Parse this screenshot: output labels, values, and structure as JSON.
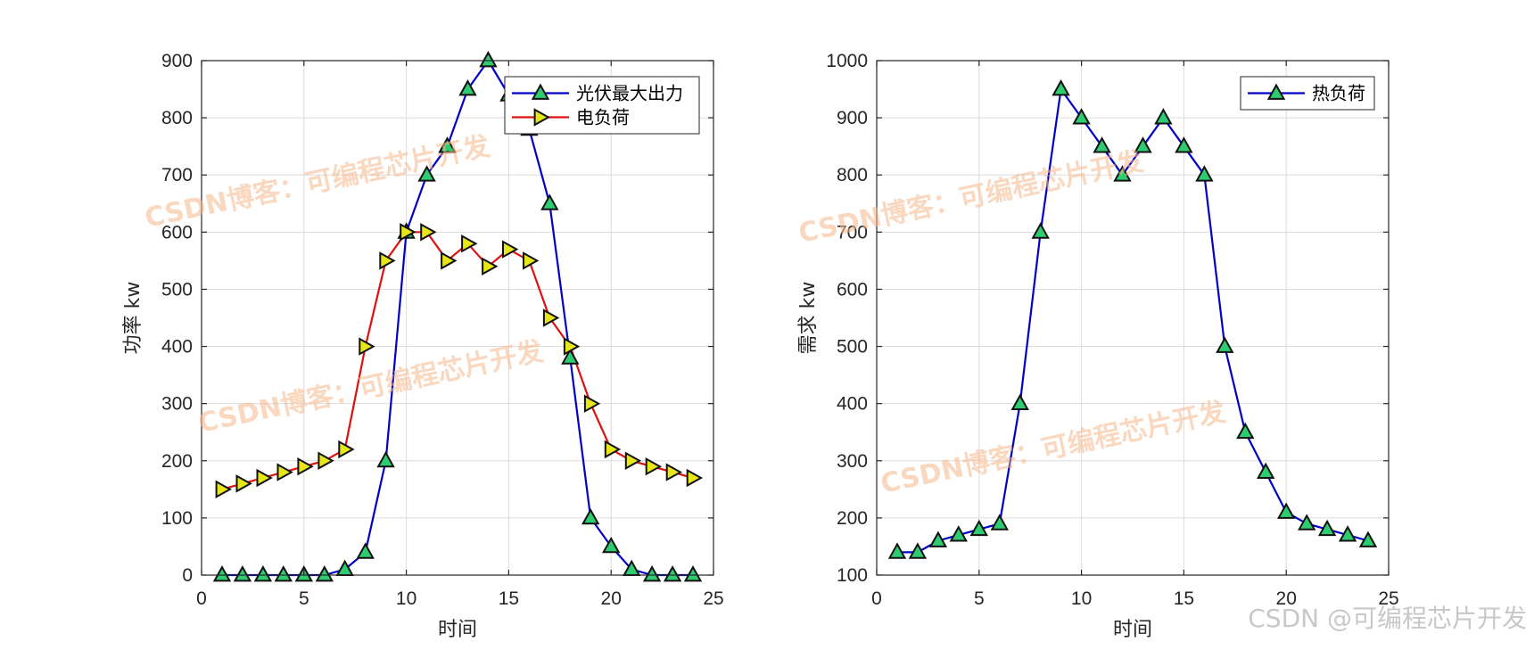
{
  "chart_data": [
    {
      "type": "line",
      "title": "",
      "xlabel": "时间",
      "ylabel": "功率 kw",
      "xlim": [
        0,
        25
      ],
      "ylim": [
        0,
        900
      ],
      "xticks": [
        0,
        5,
        10,
        15,
        20,
        25
      ],
      "yticks": [
        0,
        100,
        200,
        300,
        400,
        500,
        600,
        700,
        800,
        900
      ],
      "grid": true,
      "legend_position": "top-right",
      "x": [
        1,
        2,
        3,
        4,
        5,
        6,
        7,
        8,
        9,
        10,
        11,
        12,
        13,
        14,
        15,
        16,
        17,
        18,
        19,
        20,
        21,
        22,
        23,
        24
      ],
      "series": [
        {
          "name": "光伏最大出力",
          "color": "#0000c8",
          "marker": "triangle-up",
          "marker_fill": "#2ecc71",
          "values": [
            0,
            0,
            0,
            0,
            0,
            0,
            10,
            40,
            200,
            600,
            700,
            750,
            850,
            900,
            840,
            780,
            650,
            380,
            100,
            50,
            10,
            0,
            0,
            0
          ]
        },
        {
          "name": "电负荷",
          "color": "#e01010",
          "marker": "triangle-right",
          "marker_fill": "#e6e619",
          "values": [
            150,
            160,
            170,
            180,
            190,
            200,
            220,
            400,
            550,
            600,
            600,
            550,
            580,
            540,
            570,
            550,
            450,
            400,
            300,
            220,
            200,
            190,
            180,
            170
          ]
        }
      ]
    },
    {
      "type": "line",
      "title": "",
      "xlabel": "时间",
      "ylabel": "需求 kw",
      "xlim": [
        0,
        25
      ],
      "ylim": [
        100,
        1000
      ],
      "xticks": [
        0,
        5,
        10,
        15,
        20,
        25
      ],
      "yticks": [
        100,
        200,
        300,
        400,
        500,
        600,
        700,
        800,
        900,
        1000
      ],
      "grid": true,
      "legend_position": "top-right",
      "x": [
        1,
        2,
        3,
        4,
        5,
        6,
        7,
        8,
        9,
        10,
        11,
        12,
        13,
        14,
        15,
        16,
        17,
        18,
        19,
        20,
        21,
        22,
        23,
        24
      ],
      "series": [
        {
          "name": "热负荷",
          "color": "#0000c8",
          "marker": "triangle-up",
          "marker_fill": "#2ecc71",
          "values": [
            140,
            140,
            160,
            170,
            180,
            190,
            400,
            700,
            950,
            900,
            850,
            800,
            850,
            900,
            850,
            800,
            500,
            350,
            280,
            210,
            190,
            180,
            170,
            160
          ]
        }
      ]
    }
  ],
  "watermarks": [
    "CSDN博客：可编程芯片开发",
    "CSDN博客：可编程芯片开发",
    "CSDN博客：可编程芯片开发",
    "CSDN博客：可编程芯片开发"
  ],
  "credit": "CSDN @可编程芯片开发"
}
